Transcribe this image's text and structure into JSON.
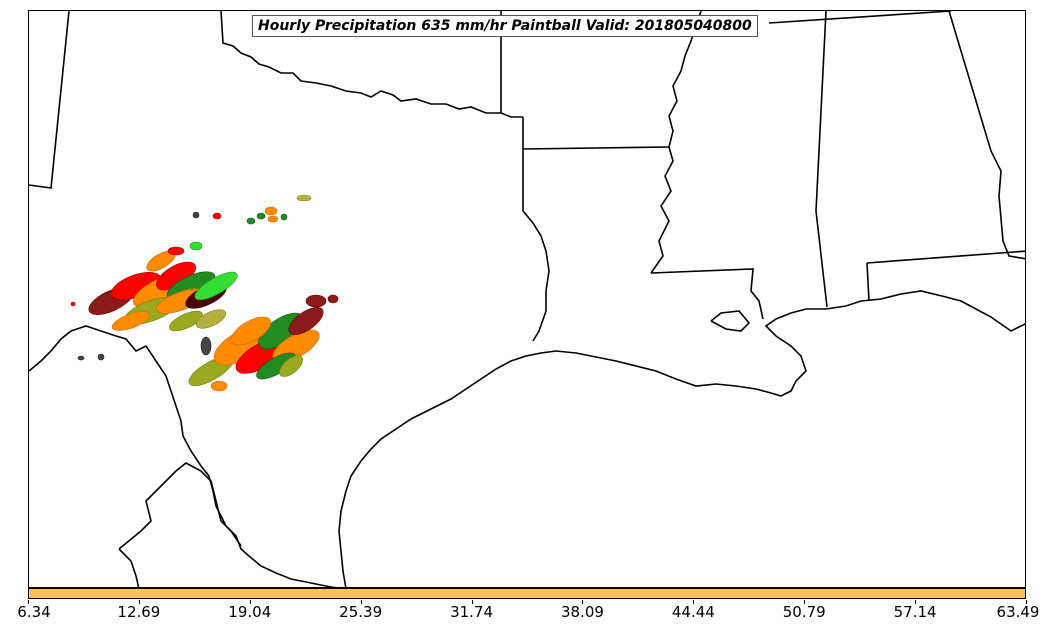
{
  "title": "Hourly Precipitation 635 mm/hr Paintball Valid: 201805040800",
  "colorbar": {
    "color": "#FFC060",
    "ticks": [
      "6.34",
      "12.69",
      "19.04",
      "25.39",
      "31.74",
      "38.09",
      "44.44",
      "50.79",
      "57.14",
      "63.49"
    ]
  },
  "colors": {
    "boundary": "#000000",
    "paintball_palette": [
      "#FF0000",
      "#FF8C00",
      "#228B22",
      "#33DD33",
      "#8B1A1A",
      "#9AAA20",
      "#4B0000",
      "#B5B040",
      "#444444"
    ]
  }
}
